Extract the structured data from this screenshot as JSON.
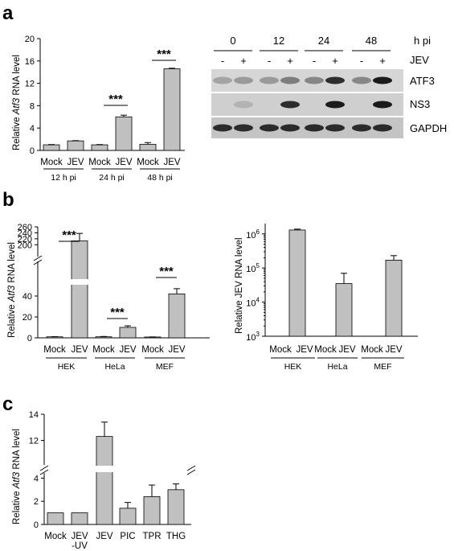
{
  "panel_labels": {
    "a": "a",
    "b": "b",
    "c": "c"
  },
  "blot": {
    "time_header": "h pi",
    "times": [
      "0",
      "12",
      "24",
      "48"
    ],
    "jev_label": "JEV",
    "signs": [
      "-",
      "+",
      "-",
      "+",
      "-",
      "+",
      "-",
      "+"
    ],
    "proteins": [
      "ATF3",
      "NS3",
      "GAPDH"
    ]
  },
  "chart_data": [
    {
      "id": "a",
      "type": "bar",
      "ylabel_prefix": "Relative ",
      "ylabel_italic": "Atf3",
      "ylabel_suffix": " RNA level",
      "categories": [
        "Mock",
        "JEV",
        "Mock",
        "JEV",
        "Mock",
        "JEV"
      ],
      "groups": [
        "12 h pi",
        "24 h pi",
        "48 h pi"
      ],
      "values": [
        1.0,
        1.7,
        1.0,
        6.0,
        1.1,
        14.6
      ],
      "errors": [
        0.05,
        0.05,
        0.05,
        0.3,
        0.3,
        0.1
      ],
      "ylim": [
        0,
        20
      ],
      "yticks": [
        "0",
        "4",
        "8",
        "12",
        "16",
        "20"
      ],
      "significance": [
        "***",
        "***"
      ]
    },
    {
      "id": "b-left",
      "type": "bar",
      "ylabel_prefix": "Relative ",
      "ylabel_italic": "Atf3",
      "ylabel_suffix": " RNA level",
      "categories": [
        "Mock",
        "JEV",
        "Mock",
        "JEV",
        "Mock",
        "JEV"
      ],
      "groups": [
        "HEK",
        "HeLa",
        "MEF"
      ],
      "values": [
        1.0,
        213,
        1.0,
        10.0,
        0.8,
        42
      ],
      "errors": [
        0.1,
        25,
        0.3,
        1.5,
        0.1,
        5
      ],
      "axis_break": true,
      "ylim_lower": [
        0,
        50
      ],
      "ylim_upper": [
        190,
        260
      ],
      "yticks": [
        "0",
        "20",
        "40",
        "200",
        "220",
        "240",
        "260"
      ],
      "significance": [
        "***",
        "***",
        "***"
      ]
    },
    {
      "id": "b-right",
      "type": "bar",
      "yscale": "log",
      "ylabel": "Relative JEV RNA level",
      "categories": [
        "Mock",
        "JEV",
        "Mock",
        "JEV",
        "Mock",
        "JEV"
      ],
      "groups": [
        "HEK",
        "HeLa",
        "MEF"
      ],
      "values": [
        0,
        1300000,
        0,
        35000,
        0,
        170000
      ],
      "error_upper": [
        0,
        1380000,
        0,
        70000,
        0,
        230000
      ],
      "ylim": [
        1000,
        2000000
      ],
      "yticks": [
        {
          "base": "10",
          "exp": "3"
        },
        {
          "base": "10",
          "exp": "4"
        },
        {
          "base": "10",
          "exp": "5"
        },
        {
          "base": "10",
          "exp": "6"
        }
      ]
    },
    {
      "id": "c",
      "type": "bar",
      "ylabel_prefix": "Relative ",
      "ylabel_italic": "Atf3",
      "ylabel_suffix": " RNA level",
      "categories": [
        "Mock",
        "JEV\n-UV",
        "JEV",
        "PIC",
        "TPR",
        "THG"
      ],
      "values": [
        1.0,
        1.0,
        12.3,
        1.4,
        2.4,
        3.0
      ],
      "errors": [
        0.0,
        0.0,
        1.1,
        0.5,
        1.0,
        0.5
      ],
      "axis_break": true,
      "ylim_lower": [
        0,
        5
      ],
      "ylim_upper": [
        10,
        14
      ],
      "yticks": [
        "0",
        "2",
        "4",
        "12",
        "14"
      ]
    }
  ]
}
